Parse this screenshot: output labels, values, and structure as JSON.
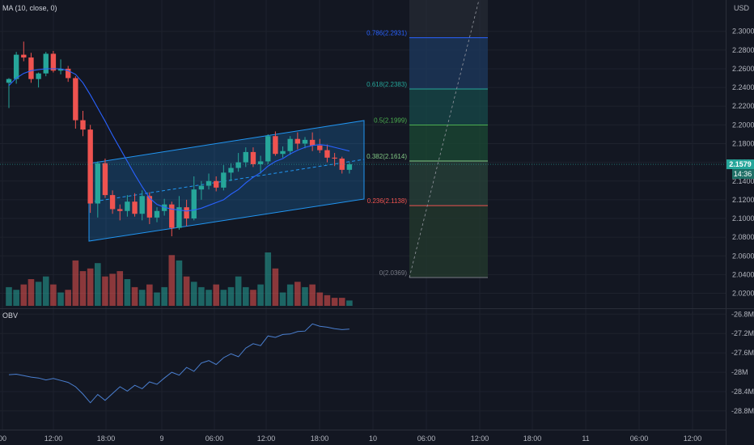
{
  "indicators": {
    "ma_label": "MA (10, close, 0)",
    "obv_label": "OBV"
  },
  "currency": "USD",
  "price_badge": {
    "price": "2.1579",
    "time": "14:36"
  },
  "colors": {
    "background": "#131722",
    "grid": "#1e222d",
    "up": "#26a69a",
    "down": "#ef5350",
    "ma": "#2962ff",
    "channel": "#2196f3",
    "obv": "#4a7fd0"
  },
  "chart_data": {
    "type": "candlestick",
    "price_axis": {
      "range": [
        2.014,
        2.314
      ],
      "ticks": [
        "2.3000",
        "2.2800",
        "2.2600",
        "2.2400",
        "2.2200",
        "2.2000",
        "2.1800",
        "2.1600",
        "2.1400",
        "2.1200",
        "2.1000",
        "2.0800",
        "2.0600",
        "2.0400",
        "2.0200"
      ]
    },
    "obv_axis": {
      "range": [
        -28.91,
        -26.77
      ],
      "ticks": [
        "-26.8M",
        "-27.2M",
        "-27.6M",
        "-28M",
        "-28.4M",
        "-28.8M"
      ]
    },
    "time_ticks": [
      "00",
      "12:00",
      "18:00",
      "9",
      "06:00",
      "12:00",
      "18:00",
      "10",
      "06:00",
      "12:00",
      "18:00",
      "11",
      "06:00",
      "12:00"
    ],
    "candles": [
      [
        2.245,
        2.25,
        2.218,
        2.249
      ],
      [
        2.249,
        2.278,
        2.244,
        2.275
      ],
      [
        2.275,
        2.289,
        2.268,
        2.272
      ],
      [
        2.272,
        2.277,
        2.245,
        2.249
      ],
      [
        2.249,
        2.256,
        2.24,
        2.255
      ],
      [
        2.255,
        2.278,
        2.252,
        2.276
      ],
      [
        2.276,
        2.279,
        2.256,
        2.258
      ],
      [
        2.258,
        2.27,
        2.254,
        2.26
      ],
      [
        2.26,
        2.263,
        2.246,
        2.25
      ],
      [
        2.25,
        2.252,
        2.196,
        2.205
      ],
      [
        2.205,
        2.215,
        2.188,
        2.195
      ],
      [
        2.195,
        2.2,
        2.106,
        2.116
      ],
      [
        2.116,
        2.161,
        2.101,
        2.159
      ],
      [
        2.159,
        2.164,
        2.122,
        2.125
      ],
      [
        2.125,
        2.13,
        2.105,
        2.11
      ],
      [
        2.11,
        2.115,
        2.098,
        2.108
      ],
      [
        2.108,
        2.125,
        2.102,
        2.118
      ],
      [
        2.118,
        2.127,
        2.102,
        2.105
      ],
      [
        2.105,
        2.13,
        2.098,
        2.124
      ],
      [
        2.124,
        2.128,
        2.094,
        2.101
      ],
      [
        2.101,
        2.112,
        2.096,
        2.108
      ],
      [
        2.108,
        2.121,
        2.103,
        2.115
      ],
      [
        2.115,
        2.118,
        2.081,
        2.09
      ],
      [
        2.09,
        2.124,
        2.088,
        2.112
      ],
      [
        2.112,
        2.12,
        2.092,
        2.1
      ],
      [
        2.1,
        2.145,
        2.098,
        2.131
      ],
      [
        2.131,
        2.14,
        2.12,
        2.135
      ],
      [
        2.135,
        2.148,
        2.131,
        2.14
      ],
      [
        2.14,
        2.145,
        2.129,
        2.133
      ],
      [
        2.133,
        2.157,
        2.13,
        2.149
      ],
      [
        2.149,
        2.159,
        2.14,
        2.154
      ],
      [
        2.154,
        2.17,
        2.15,
        2.16
      ],
      [
        2.16,
        2.176,
        2.155,
        2.171
      ],
      [
        2.171,
        2.176,
        2.155,
        2.158
      ],
      [
        2.158,
        2.167,
        2.148,
        2.161
      ],
      [
        2.161,
        2.19,
        2.158,
        2.188
      ],
      [
        2.188,
        2.193,
        2.167,
        2.169
      ],
      [
        2.169,
        2.177,
        2.165,
        2.172
      ],
      [
        2.172,
        2.188,
        2.168,
        2.185
      ],
      [
        2.185,
        2.192,
        2.174,
        2.18
      ],
      [
        2.18,
        2.187,
        2.175,
        2.184
      ],
      [
        2.184,
        2.192,
        2.172,
        2.178
      ],
      [
        2.178,
        2.185,
        2.17,
        2.173
      ],
      [
        2.173,
        2.179,
        2.16,
        2.165
      ],
      [
        2.165,
        2.17,
        2.156,
        2.164
      ],
      [
        2.164,
        2.166,
        2.148,
        2.152
      ],
      [
        2.152,
        2.16,
        2.148,
        2.158
      ]
    ],
    "volume": [
      7,
      6,
      8,
      10,
      9,
      11,
      8,
      5,
      6,
      17,
      13,
      14,
      16,
      11,
      12,
      13,
      10,
      7,
      6,
      8,
      5,
      7,
      19,
      17,
      11,
      9,
      7,
      6,
      8,
      6,
      7,
      11,
      7,
      6,
      8,
      20,
      14,
      5,
      8,
      9,
      7,
      8,
      5,
      4,
      3,
      3,
      2
    ],
    "ma10": [
      2.242,
      2.25,
      2.255,
      2.258,
      2.259,
      2.26,
      2.26,
      2.26,
      2.258,
      2.254,
      2.245,
      2.232,
      2.218,
      2.204,
      2.189,
      2.175,
      2.161,
      2.147,
      2.134,
      2.122,
      2.115,
      2.112,
      2.11,
      2.109,
      2.108,
      2.109,
      2.111,
      2.114,
      2.117,
      2.12,
      2.126,
      2.131,
      2.138,
      2.144,
      2.149,
      2.156,
      2.161,
      2.164,
      2.169,
      2.173,
      2.176,
      2.178,
      2.179,
      2.178,
      2.176,
      2.174,
      2.172
    ],
    "obv": [
      -28.05,
      -28.04,
      -28.07,
      -28.1,
      -28.12,
      -28.16,
      -28.13,
      -28.17,
      -28.21,
      -28.3,
      -28.45,
      -28.63,
      -28.46,
      -28.58,
      -28.44,
      -28.3,
      -28.39,
      -28.27,
      -28.34,
      -28.2,
      -28.25,
      -28.12,
      -28.0,
      -28.06,
      -27.9,
      -27.98,
      -27.81,
      -27.76,
      -27.84,
      -27.7,
      -27.62,
      -27.68,
      -27.5,
      -27.41,
      -27.45,
      -27.25,
      -27.28,
      -27.22,
      -27.21,
      -27.16,
      -27.15,
      -27.0,
      -27.05,
      -27.07,
      -27.1,
      -27.12,
      -27.11
    ],
    "fibonacci": {
      "levels": [
        {
          "ratio": "0.786",
          "price": "2.2931",
          "label": "0.786(2.2931)",
          "color": "#2962ff"
        },
        {
          "ratio": "0.618",
          "price": "2.2383",
          "label": "0.618(2.2383)",
          "color": "#26a69a"
        },
        {
          "ratio": "0.5",
          "price": "2.1999",
          "label": "0.5(2.1999)",
          "color": "#4caf50"
        },
        {
          "ratio": "0.382",
          "price": "2.1614",
          "label": "0.382(2.1614)",
          "color": "#81c784"
        },
        {
          "ratio": "0.236",
          "price": "2.1138",
          "label": "0.236(2.1138)",
          "color": "#ef5350"
        },
        {
          "ratio": "0",
          "price": "2.0369",
          "label": "0(2.0369)",
          "color": "#787b86"
        }
      ]
    }
  }
}
